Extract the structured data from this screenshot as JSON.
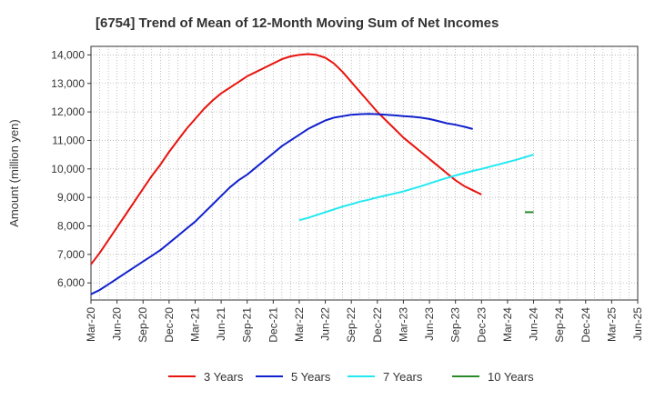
{
  "chart_data": {
    "type": "line",
    "title": "[6754]  Trend of Mean of 12-Month Moving Sum of Net Incomes",
    "xlabel": "",
    "ylabel": "Amount (million yen)",
    "ylim": [
      5400,
      14300
    ],
    "yticks": [
      6000,
      7000,
      8000,
      9000,
      10000,
      11000,
      12000,
      13000,
      14000
    ],
    "ytick_labels": [
      "6,000",
      "7,000",
      "8,000",
      "9,000",
      "10,000",
      "11,000",
      "12,000",
      "13,000",
      "14,000"
    ],
    "xtick_labels": [
      "Mar-20",
      "Jun-20",
      "Sep-20",
      "Dec-20",
      "Mar-21",
      "Jun-21",
      "Sep-21",
      "Dec-21",
      "Mar-22",
      "Jun-22",
      "Sep-22",
      "Dec-22",
      "Mar-23",
      "Jun-23",
      "Sep-23",
      "Dec-23",
      "Mar-24",
      "Jun-24",
      "Sep-24",
      "Dec-24",
      "Mar-25",
      "Jun-25"
    ],
    "grid": true,
    "legend_position": "bottom",
    "series": [
      {
        "name": "3 Years",
        "color": "#e8140f",
        "start_index": 0,
        "values": [
          6650,
          7050,
          7500,
          7950,
          8400,
          8850,
          9300,
          9750,
          10150,
          10600,
          11000,
          11400,
          11750,
          12100,
          12400,
          12650,
          12850,
          13050,
          13250,
          13400,
          13550,
          13700,
          13850,
          13950,
          14000,
          14030,
          14000,
          13900,
          13700,
          13400,
          13050,
          12700,
          12350,
          12000,
          11700,
          11400,
          11100,
          10850,
          10600,
          10350,
          10100,
          9850,
          9600,
          9400,
          9250,
          9100
        ]
      },
      {
        "name": "5 Years",
        "color": "#1020cc",
        "start_index": 0,
        "values": [
          5600,
          5750,
          5950,
          6150,
          6350,
          6550,
          6750,
          6950,
          7150,
          7400,
          7650,
          7900,
          8150,
          8450,
          8750,
          9050,
          9350,
          9600,
          9800,
          10050,
          10300,
          10550,
          10800,
          11000,
          11200,
          11400,
          11550,
          11700,
          11800,
          11850,
          11900,
          11920,
          11930,
          11920,
          11900,
          11880,
          11850,
          11830,
          11800,
          11750,
          11680,
          11600,
          11550,
          11480,
          11400
        ]
      },
      {
        "name": "7 Years",
        "color": "#22e8f0",
        "start_index": 24,
        "values": [
          8200,
          8280,
          8380,
          8480,
          8580,
          8680,
          8760,
          8850,
          8920,
          9000,
          9070,
          9140,
          9210,
          9300,
          9390,
          9490,
          9590,
          9680,
          9770,
          9850,
          9930,
          10000,
          10080,
          10160,
          10240,
          10320,
          10410,
          10500
        ]
      },
      {
        "name": "10 Years",
        "color": "#2a8a2a",
        "start_index": 50,
        "values": [
          8480,
          8480
        ]
      }
    ]
  }
}
